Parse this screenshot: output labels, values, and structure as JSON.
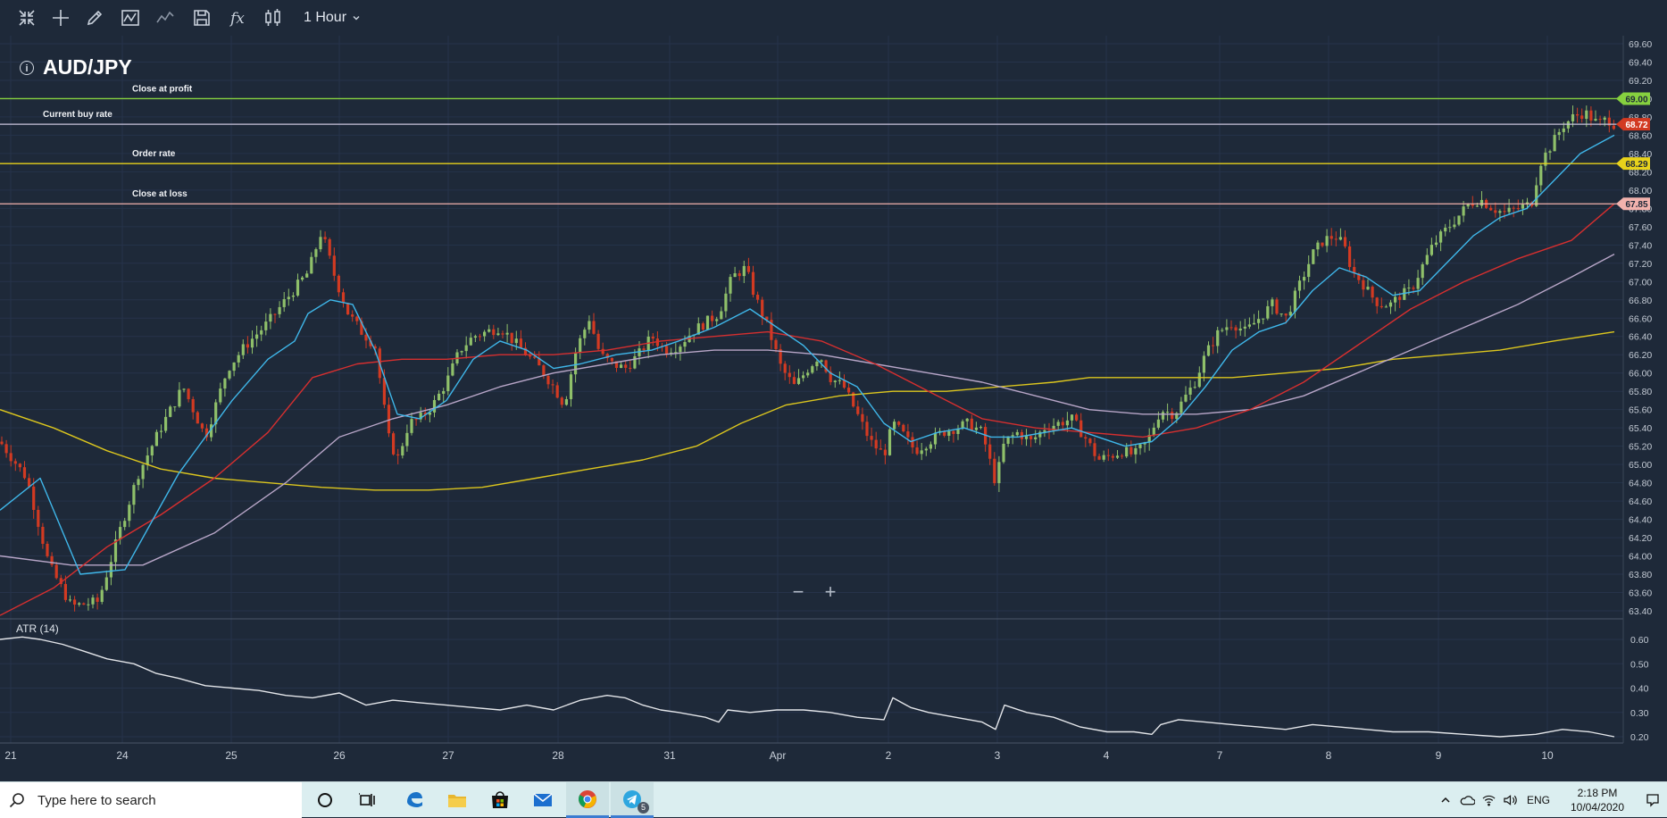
{
  "toolbar": {
    "icons": [
      "collapse-icon",
      "crosshair-icon",
      "pencil-icon",
      "indicator-icon",
      "line-chart-icon",
      "save-icon",
      "fx-icon",
      "chart-type-icon"
    ],
    "timeframe": "1 Hour"
  },
  "symbol": {
    "name": "AUD/JPY",
    "info_glyph": "i"
  },
  "colors": {
    "background": "#1e2939",
    "grid": "#26334a",
    "bull": "#8fc06a",
    "bear": "#d23a22",
    "ema_fast": "#3fb7ea",
    "ema_mid": "#d62f2f",
    "ema_slow": "#b8a6c8",
    "ema_long": "#dcc61e",
    "profit": "#86d13f",
    "buy": "#c9c4dc",
    "order": "#e8d21b",
    "loss": "#f2b2ad",
    "atr": "#e4e6ea"
  },
  "chart_data": {
    "type": "candlestick",
    "y_axis_ticks": [
      "69.60",
      "69.40",
      "69.20",
      "69.00",
      "68.80",
      "68.60",
      "68.40",
      "68.20",
      "68.00",
      "67.80",
      "67.60",
      "67.40",
      "67.20",
      "67.00",
      "66.80",
      "66.60",
      "66.40",
      "66.20",
      "66.00",
      "65.80",
      "65.60",
      "65.40",
      "65.20",
      "65.00",
      "64.80",
      "64.60",
      "64.40",
      "64.20",
      "64.00",
      "63.80",
      "63.60",
      "63.40"
    ],
    "ylim": [
      63.3,
      69.7
    ],
    "x_labels": [
      {
        "label": "21",
        "px": 12
      },
      {
        "label": "24",
        "px": 137
      },
      {
        "label": "25",
        "px": 259
      },
      {
        "label": "26",
        "px": 380
      },
      {
        "label": "27",
        "px": 502
      },
      {
        "label": "28",
        "px": 625
      },
      {
        "label": "31",
        "px": 750
      },
      {
        "label": "Apr",
        "px": 871
      },
      {
        "label": "2",
        "px": 995
      },
      {
        "label": "3",
        "px": 1117
      },
      {
        "label": "4",
        "px": 1239
      },
      {
        "label": "7",
        "px": 1366
      },
      {
        "label": "8",
        "px": 1488
      },
      {
        "label": "9",
        "px": 1611
      },
      {
        "label": "10",
        "px": 1733
      }
    ],
    "price_lines": [
      {
        "name": "Close at profit",
        "value": 69.0,
        "label": "69.00",
        "label_pos": 148
      },
      {
        "name": "Current buy rate",
        "value": 68.72,
        "label": "68.72",
        "label_pos": 48
      },
      {
        "name": "Order rate",
        "value": 68.29,
        "label": "68.29",
        "label_pos": 148
      },
      {
        "name": "Close at loss",
        "value": 67.85,
        "label": "67.85",
        "label_pos": 148
      }
    ],
    "close_path": [
      [
        0,
        65.25
      ],
      [
        30,
        64.85
      ],
      [
        55,
        63.9
      ],
      [
        80,
        63.45
      ],
      [
        110,
        63.5
      ],
      [
        135,
        64.3
      ],
      [
        155,
        64.9
      ],
      [
        180,
        65.4
      ],
      [
        205,
        65.85
      ],
      [
        230,
        65.3
      ],
      [
        255,
        66.05
      ],
      [
        275,
        66.3
      ],
      [
        300,
        66.55
      ],
      [
        320,
        66.8
      ],
      [
        345,
        67.1
      ],
      [
        360,
        67.55
      ],
      [
        375,
        67.05
      ],
      [
        390,
        66.65
      ],
      [
        405,
        66.45
      ],
      [
        420,
        66.3
      ],
      [
        435,
        65.3
      ],
      [
        445,
        65.05
      ],
      [
        458,
        65.45
      ],
      [
        470,
        65.5
      ],
      [
        485,
        65.65
      ],
      [
        500,
        65.9
      ],
      [
        515,
        66.25
      ],
      [
        530,
        66.4
      ],
      [
        545,
        66.45
      ],
      [
        560,
        66.5
      ],
      [
        575,
        66.35
      ],
      [
        590,
        66.2
      ],
      [
        605,
        66.05
      ],
      [
        620,
        65.85
      ],
      [
        632,
        65.65
      ],
      [
        645,
        66.25
      ],
      [
        660,
        66.6
      ],
      [
        672,
        66.2
      ],
      [
        685,
        66.1
      ],
      [
        700,
        66.05
      ],
      [
        715,
        66.2
      ],
      [
        730,
        66.4
      ],
      [
        745,
        66.25
      ],
      [
        760,
        66.3
      ],
      [
        775,
        66.45
      ],
      [
        790,
        66.55
      ],
      [
        805,
        66.65
      ],
      [
        820,
        67.05
      ],
      [
        835,
        67.15
      ],
      [
        845,
        66.85
      ],
      [
        860,
        66.5
      ],
      [
        875,
        66.05
      ],
      [
        890,
        65.85
      ],
      [
        905,
        66.05
      ],
      [
        918,
        66.2
      ],
      [
        930,
        65.95
      ],
      [
        945,
        65.85
      ],
      [
        960,
        65.55
      ],
      [
        975,
        65.25
      ],
      [
        990,
        65.1
      ],
      [
        1000,
        65.45
      ],
      [
        1010,
        65.35
      ],
      [
        1025,
        65.15
      ],
      [
        1040,
        65.25
      ],
      [
        1055,
        65.35
      ],
      [
        1070,
        65.4
      ],
      [
        1085,
        65.45
      ],
      [
        1100,
        65.35
      ],
      [
        1115,
        64.8
      ],
      [
        1125,
        65.25
      ],
      [
        1140,
        65.35
      ],
      [
        1155,
        65.25
      ],
      [
        1170,
        65.4
      ],
      [
        1185,
        65.45
      ],
      [
        1200,
        65.5
      ],
      [
        1215,
        65.3
      ],
      [
        1230,
        65.05
      ],
      [
        1245,
        65.1
      ],
      [
        1258,
        65.15
      ],
      [
        1270,
        65.1
      ],
      [
        1285,
        65.25
      ],
      [
        1300,
        65.6
      ],
      [
        1315,
        65.55
      ],
      [
        1325,
        65.7
      ],
      [
        1338,
        65.9
      ],
      [
        1350,
        66.2
      ],
      [
        1365,
        66.45
      ],
      [
        1380,
        66.55
      ],
      [
        1395,
        66.45
      ],
      [
        1410,
        66.6
      ],
      [
        1425,
        66.75
      ],
      [
        1440,
        66.6
      ],
      [
        1455,
        66.95
      ],
      [
        1470,
        67.3
      ],
      [
        1482,
        67.45
      ],
      [
        1495,
        67.5
      ],
      [
        1505,
        67.4
      ],
      [
        1515,
        67.1
      ],
      [
        1525,
        67.0
      ],
      [
        1535,
        66.85
      ],
      [
        1545,
        66.75
      ],
      [
        1558,
        66.75
      ],
      [
        1568,
        66.85
      ],
      [
        1580,
        66.9
      ],
      [
        1592,
        67.15
      ],
      [
        1605,
        67.4
      ],
      [
        1618,
        67.55
      ],
      [
        1632,
        67.7
      ],
      [
        1645,
        67.85
      ],
      [
        1658,
        67.9
      ],
      [
        1672,
        67.8
      ],
      [
        1685,
        67.75
      ],
      [
        1700,
        67.8
      ],
      [
        1715,
        67.85
      ],
      [
        1725,
        68.3
      ],
      [
        1738,
        68.5
      ],
      [
        1750,
        68.7
      ],
      [
        1762,
        68.8
      ],
      [
        1775,
        68.85
      ],
      [
        1790,
        68.72
      ],
      [
        1800,
        68.78
      ],
      [
        1808,
        68.72
      ]
    ],
    "ema_fast_path": [
      [
        0,
        64.5
      ],
      [
        45,
        64.85
      ],
      [
        90,
        63.8
      ],
      [
        140,
        63.85
      ],
      [
        200,
        64.9
      ],
      [
        260,
        65.7
      ],
      [
        300,
        66.15
      ],
      [
        330,
        66.35
      ],
      [
        345,
        66.65
      ],
      [
        370,
        66.8
      ],
      [
        395,
        66.75
      ],
      [
        420,
        66.25
      ],
      [
        445,
        65.55
      ],
      [
        470,
        65.5
      ],
      [
        500,
        65.7
      ],
      [
        530,
        66.15
      ],
      [
        560,
        66.35
      ],
      [
        590,
        66.25
      ],
      [
        620,
        66.05
      ],
      [
        650,
        66.1
      ],
      [
        690,
        66.2
      ],
      [
        730,
        66.25
      ],
      [
        760,
        66.35
      ],
      [
        800,
        66.5
      ],
      [
        840,
        66.7
      ],
      [
        870,
        66.5
      ],
      [
        900,
        66.3
      ],
      [
        930,
        66.0
      ],
      [
        960,
        65.85
      ],
      [
        990,
        65.45
      ],
      [
        1020,
        65.25
      ],
      [
        1050,
        65.35
      ],
      [
        1080,
        65.4
      ],
      [
        1110,
        65.3
      ],
      [
        1140,
        65.3
      ],
      [
        1170,
        65.35
      ],
      [
        1200,
        65.4
      ],
      [
        1230,
        65.3
      ],
      [
        1260,
        65.2
      ],
      [
        1290,
        65.25
      ],
      [
        1320,
        65.5
      ],
      [
        1350,
        65.85
      ],
      [
        1380,
        66.25
      ],
      [
        1410,
        66.45
      ],
      [
        1440,
        66.55
      ],
      [
        1470,
        66.9
      ],
      [
        1500,
        67.15
      ],
      [
        1530,
        67.05
      ],
      [
        1560,
        66.85
      ],
      [
        1590,
        66.9
      ],
      [
        1620,
        67.2
      ],
      [
        1650,
        67.5
      ],
      [
        1680,
        67.7
      ],
      [
        1710,
        67.8
      ],
      [
        1740,
        68.1
      ],
      [
        1770,
        68.4
      ],
      [
        1808,
        68.6
      ]
    ],
    "ema_mid_path": [
      [
        0,
        63.35
      ],
      [
        60,
        63.65
      ],
      [
        120,
        64.1
      ],
      [
        180,
        64.45
      ],
      [
        240,
        64.85
      ],
      [
        300,
        65.35
      ],
      [
        350,
        65.95
      ],
      [
        400,
        66.1
      ],
      [
        450,
        66.15
      ],
      [
        500,
        66.15
      ],
      [
        560,
        66.2
      ],
      [
        620,
        66.2
      ],
      [
        680,
        66.25
      ],
      [
        740,
        66.35
      ],
      [
        800,
        66.4
      ],
      [
        860,
        66.45
      ],
      [
        920,
        66.35
      ],
      [
        980,
        66.1
      ],
      [
        1040,
        65.8
      ],
      [
        1100,
        65.5
      ],
      [
        1160,
        65.4
      ],
      [
        1220,
        65.35
      ],
      [
        1280,
        65.3
      ],
      [
        1340,
        65.4
      ],
      [
        1400,
        65.6
      ],
      [
        1460,
        65.9
      ],
      [
        1520,
        66.3
      ],
      [
        1580,
        66.7
      ],
      [
        1640,
        67.0
      ],
      [
        1700,
        67.25
      ],
      [
        1760,
        67.45
      ],
      [
        1808,
        67.85
      ]
    ],
    "ema_slow_path": [
      [
        0,
        64.0
      ],
      [
        80,
        63.9
      ],
      [
        160,
        63.9
      ],
      [
        240,
        64.25
      ],
      [
        320,
        64.8
      ],
      [
        380,
        65.3
      ],
      [
        440,
        65.5
      ],
      [
        500,
        65.65
      ],
      [
        560,
        65.85
      ],
      [
        620,
        66.0
      ],
      [
        680,
        66.1
      ],
      [
        740,
        66.2
      ],
      [
        800,
        66.25
      ],
      [
        860,
        66.25
      ],
      [
        920,
        66.2
      ],
      [
        980,
        66.1
      ],
      [
        1040,
        66.0
      ],
      [
        1100,
        65.9
      ],
      [
        1160,
        65.75
      ],
      [
        1220,
        65.6
      ],
      [
        1280,
        65.55
      ],
      [
        1340,
        65.55
      ],
      [
        1400,
        65.6
      ],
      [
        1460,
        65.75
      ],
      [
        1520,
        66.0
      ],
      [
        1580,
        66.25
      ],
      [
        1640,
        66.5
      ],
      [
        1700,
        66.75
      ],
      [
        1760,
        67.05
      ],
      [
        1808,
        67.3
      ]
    ],
    "ema_long_path": [
      [
        0,
        65.6
      ],
      [
        60,
        65.4
      ],
      [
        120,
        65.15
      ],
      [
        180,
        64.95
      ],
      [
        240,
        64.85
      ],
      [
        300,
        64.8
      ],
      [
        360,
        64.75
      ],
      [
        420,
        64.72
      ],
      [
        480,
        64.72
      ],
      [
        540,
        64.75
      ],
      [
        600,
        64.85
      ],
      [
        660,
        64.95
      ],
      [
        720,
        65.05
      ],
      [
        780,
        65.2
      ],
      [
        830,
        65.45
      ],
      [
        880,
        65.65
      ],
      [
        940,
        65.75
      ],
      [
        1000,
        65.8
      ],
      [
        1060,
        65.8
      ],
      [
        1120,
        65.85
      ],
      [
        1180,
        65.9
      ],
      [
        1220,
        65.95
      ],
      [
        1260,
        65.95
      ],
      [
        1320,
        65.95
      ],
      [
        1380,
        65.95
      ],
      [
        1440,
        66.0
      ],
      [
        1500,
        66.05
      ],
      [
        1560,
        66.15
      ],
      [
        1620,
        66.2
      ],
      [
        1680,
        66.25
      ],
      [
        1740,
        66.35
      ],
      [
        1808,
        66.45
      ]
    ],
    "atr": {
      "label": "ATR (14)",
      "y_axis_ticks": [
        "0.60",
        "0.50",
        "0.40",
        "0.30",
        "0.20"
      ],
      "ylim": [
        0.17,
        0.65
      ],
      "path": [
        [
          0,
          0.6
        ],
        [
          25,
          0.61
        ],
        [
          45,
          0.6
        ],
        [
          70,
          0.58
        ],
        [
          95,
          0.55
        ],
        [
          120,
          0.52
        ],
        [
          150,
          0.5
        ],
        [
          175,
          0.46
        ],
        [
          200,
          0.44
        ],
        [
          230,
          0.41
        ],
        [
          260,
          0.4
        ],
        [
          290,
          0.39
        ],
        [
          320,
          0.37
        ],
        [
          350,
          0.36
        ],
        [
          380,
          0.38
        ],
        [
          410,
          0.33
        ],
        [
          440,
          0.35
        ],
        [
          470,
          0.34
        ],
        [
          500,
          0.33
        ],
        [
          530,
          0.32
        ],
        [
          560,
          0.31
        ],
        [
          590,
          0.33
        ],
        [
          620,
          0.31
        ],
        [
          650,
          0.35
        ],
        [
          680,
          0.37
        ],
        [
          700,
          0.36
        ],
        [
          720,
          0.33
        ],
        [
          740,
          0.31
        ],
        [
          760,
          0.3
        ],
        [
          790,
          0.28
        ],
        [
          805,
          0.26
        ],
        [
          815,
          0.31
        ],
        [
          840,
          0.3
        ],
        [
          870,
          0.31
        ],
        [
          900,
          0.31
        ],
        [
          930,
          0.3
        ],
        [
          960,
          0.28
        ],
        [
          990,
          0.27
        ],
        [
          1000,
          0.36
        ],
        [
          1020,
          0.32
        ],
        [
          1040,
          0.3
        ],
        [
          1070,
          0.28
        ],
        [
          1100,
          0.26
        ],
        [
          1115,
          0.23
        ],
        [
          1125,
          0.33
        ],
        [
          1150,
          0.3
        ],
        [
          1180,
          0.28
        ],
        [
          1210,
          0.24
        ],
        [
          1240,
          0.22
        ],
        [
          1270,
          0.22
        ],
        [
          1290,
          0.21
        ],
        [
          1300,
          0.25
        ],
        [
          1320,
          0.27
        ],
        [
          1350,
          0.26
        ],
        [
          1380,
          0.25
        ],
        [
          1410,
          0.24
        ],
        [
          1440,
          0.23
        ],
        [
          1470,
          0.25
        ],
        [
          1500,
          0.24
        ],
        [
          1530,
          0.23
        ],
        [
          1560,
          0.22
        ],
        [
          1600,
          0.22
        ],
        [
          1640,
          0.21
        ],
        [
          1680,
          0.2
        ],
        [
          1720,
          0.21
        ],
        [
          1750,
          0.23
        ],
        [
          1780,
          0.22
        ],
        [
          1808,
          0.2
        ]
      ]
    }
  },
  "zoom": {
    "minus": "−",
    "plus": "+"
  },
  "taskbar": {
    "search_placeholder": "Type here to search",
    "apps": [
      "cortana-icon",
      "task-view-icon",
      "edge-icon",
      "file-explorer-icon",
      "store-icon",
      "mail-icon",
      "chrome-icon",
      "telegram-icon"
    ],
    "telegram_badge": "5",
    "tray": {
      "language": "ENG",
      "time": "2:18 PM",
      "date": "10/04/2020"
    }
  }
}
